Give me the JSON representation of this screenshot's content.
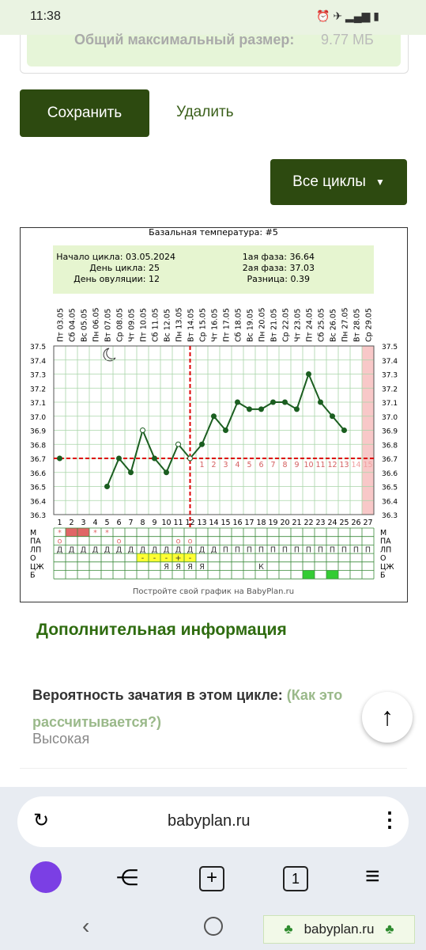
{
  "status_bar": {
    "time": "11:38"
  },
  "upload": {
    "label": "Общий максимальный размер:",
    "value": "9.77 МБ"
  },
  "buttons": {
    "save": "Сохранить",
    "delete": "Удалить",
    "all_cycles": "Все циклы"
  },
  "chart_data": {
    "type": "line",
    "title": "Базальная температура: #5",
    "info": {
      "start": "Начало цикла: 03.05.2024",
      "cycle_day": "День цикла: 25",
      "ovulation": "День овуляции: 12",
      "phase1": "1ая фаза: 36.64",
      "phase2": "2ая фаза: 37.03",
      "difference": "Разница: 0.39"
    },
    "categories": [
      "Пт 03.05",
      "Сб 04.05",
      "Вс 05.05",
      "Пн 06.05",
      "Вт 07.05",
      "Ср 08.05",
      "Чт 09.05",
      "Пт 10.05",
      "Сб 11.05",
      "Вс 12.05",
      "Пн 13.05",
      "Вт 14.05",
      "Ср 15.05",
      "Чт 16.05",
      "Пт 17.05",
      "Сб 18.05",
      "Вс 19.05",
      "Пн 20.05",
      "Вт 21.05",
      "Ср 22.05",
      "Чт 23.05",
      "Пт 24.05",
      "Сб 25.05",
      "Вс 26.05",
      "Пн 27.05",
      "Вт 28.05",
      "Ср 29.05"
    ],
    "day_numbers": [
      1,
      2,
      3,
      4,
      5,
      6,
      7,
      8,
      9,
      10,
      11,
      12,
      13,
      14,
      15,
      16,
      17,
      18,
      19,
      20,
      21,
      22,
      23,
      24,
      25,
      26,
      27
    ],
    "values": [
      36.7,
      null,
      null,
      null,
      36.5,
      36.7,
      36.6,
      36.9,
      36.7,
      36.6,
      36.8,
      36.7,
      36.8,
      37.0,
      36.9,
      37.1,
      37.05,
      37.05,
      37.1,
      37.1,
      37.05,
      37.3,
      37.1,
      37.0,
      36.9,
      null,
      null
    ],
    "color": "#1b5e20",
    "hollow_days": [
      8,
      11,
      12
    ],
    "ylim": [
      36.3,
      37.5
    ],
    "yticks": [
      36.3,
      36.4,
      36.5,
      36.6,
      36.7,
      36.8,
      36.9,
      {
        "value": 37,
        "label": "37.0"
      },
      37.1,
      37.2,
      37.3,
      37.4,
      37.5
    ],
    "grid": true,
    "coverline": 36.7,
    "ovulation_day": 12,
    "post_ovulation_days": [
      1,
      2,
      3,
      4,
      5,
      6,
      7,
      8,
      9,
      10,
      11,
      12,
      13,
      14,
      15
    ],
    "rows": [
      {
        "label": "М",
        "cells": {
          "1": "*",
          "4": "*",
          "5": "*"
        },
        "fill_days": [
          2,
          3
        ],
        "fill_color": "#e06666",
        "text_color": "#e06666"
      },
      {
        "label": "ПА",
        "cells": {
          "1": "o",
          "6": "o",
          "11": "o",
          "12": "o"
        },
        "text_color": "#e06666"
      },
      {
        "label": "ЛП",
        "cells": {
          "1": "Д",
          "2": "Д",
          "3": "Д",
          "4": "Д",
          "5": "Д",
          "6": "Д",
          "7": "Д",
          "8": "Д",
          "9": "Д",
          "10": "Д",
          "11": "Д",
          "12": "Д",
          "13": "Д",
          "14": "Д",
          "15": "П",
          "16": "П",
          "17": "П",
          "18": "П",
          "19": "П",
          "20": "П",
          "21": "П",
          "22": "П",
          "23": "П",
          "24": "П",
          "25": "П",
          "26": "П",
          "27": "П"
        },
        "text_color": "#333333"
      },
      {
        "label": "О",
        "cells": {
          "8": "-",
          "9": "-",
          "10": "-",
          "11": "+",
          "12": "-"
        },
        "fill_days": [
          8,
          9,
          10,
          11,
          12
        ],
        "fill_color": "#ffff33",
        "text_color": "#333333"
      },
      {
        "label": "ЦЖ",
        "cells": {
          "10": "Я",
          "11": "Я",
          "12": "Я",
          "13": "Я",
          "18": "К"
        },
        "text_color": "#333333"
      },
      {
        "label": "Б",
        "cells": {},
        "fill_days": [
          22,
          24
        ],
        "fill_color": "#33cc33",
        "text_color": "#333333"
      }
    ],
    "footer": "Постройте свой график на BabyPlan.ru"
  },
  "section": {
    "title": "Дополнительная информация",
    "question": "Вероятность зачатия в этом цикле:",
    "link": "(Как это рассчитывается?)",
    "answer": "Высокая"
  },
  "browser": {
    "url": "babyplan.ru",
    "tabs": "1"
  },
  "watermark": "babyplan.ru"
}
